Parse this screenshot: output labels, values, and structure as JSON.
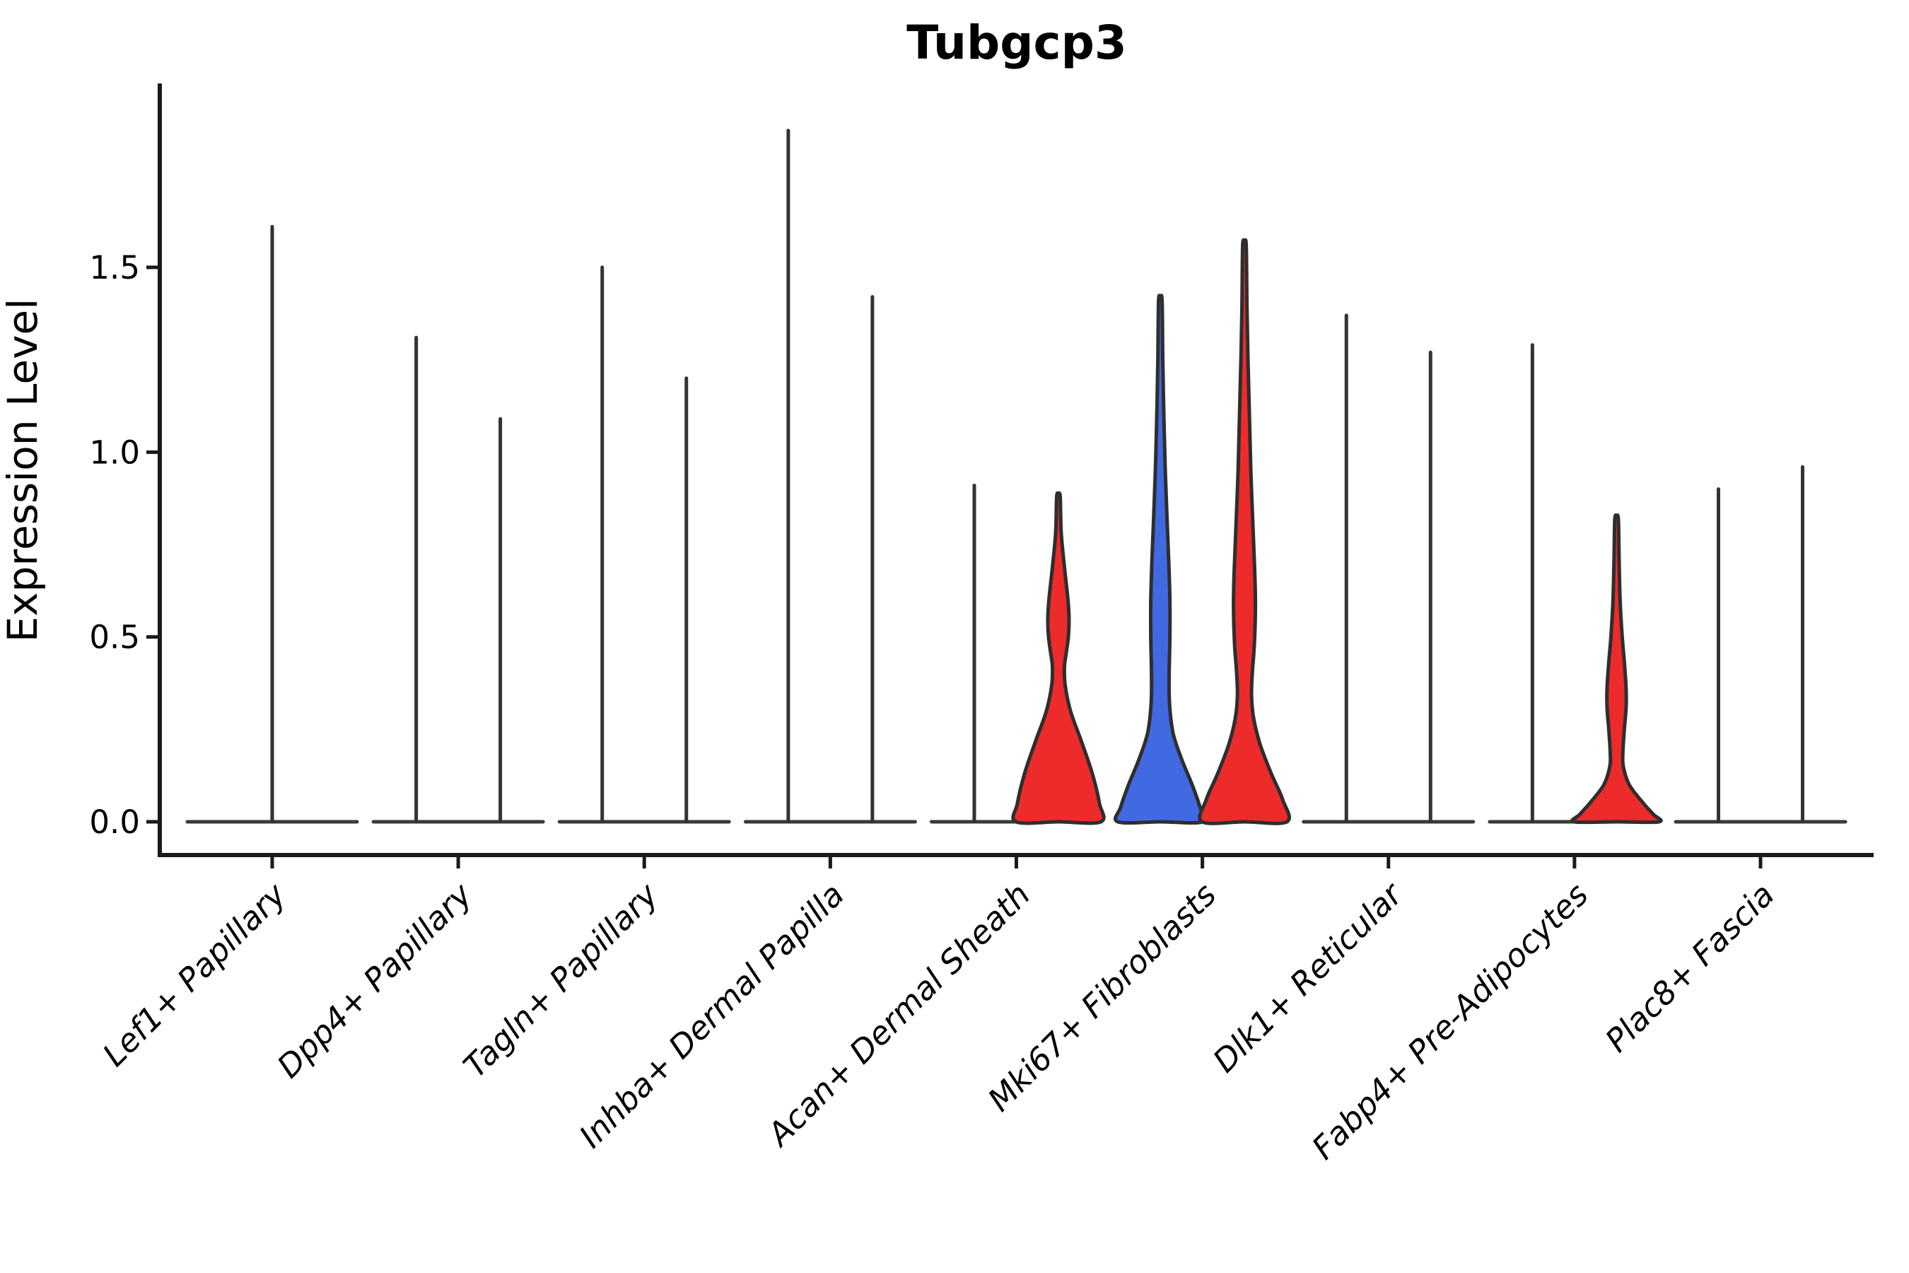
{
  "chart_data": {
    "type": "violin",
    "title": "Tubgcp3",
    "xlabel": "",
    "ylabel": "Expression Level",
    "yticks": [
      "0.0",
      "0.5",
      "1.0",
      "1.5"
    ],
    "ytick_values": [
      0.0,
      0.5,
      1.0,
      1.5
    ],
    "ylim": [
      -0.09,
      2.0
    ],
    "grid": false,
    "legend": "none",
    "colors": {
      "red_fill": "#ED2B2B",
      "blue_fill": "#4169E1",
      "outline": "#2E2E2E",
      "spike": "#333333",
      "baseline": "#3A3A3A",
      "spine": "#1A1A1A"
    },
    "categories": [
      {
        "label": "Lef1+ Papillary",
        "violins": [
          {
            "pos": "center",
            "style": "spike",
            "max": 1.61
          }
        ]
      },
      {
        "label": "Dpp4+ Papillary",
        "violins": [
          {
            "pos": "left",
            "style": "spike",
            "max": 1.31
          },
          {
            "pos": "right",
            "style": "spike",
            "max": 1.09
          }
        ]
      },
      {
        "label": "Tagln+ Papillary",
        "violins": [
          {
            "pos": "left",
            "style": "spike",
            "max": 1.5
          },
          {
            "pos": "right",
            "style": "spike",
            "max": 1.2
          }
        ]
      },
      {
        "label": "Inhba+ Dermal Papilla",
        "violins": [
          {
            "pos": "left",
            "style": "spike",
            "max": 1.87
          },
          {
            "pos": "right",
            "style": "spike",
            "max": 1.42
          }
        ]
      },
      {
        "label": "Acan+ Dermal Sheath",
        "violins": [
          {
            "pos": "left",
            "style": "spike",
            "max": 0.91
          },
          {
            "pos": "right",
            "style": "violin",
            "max": 0.88,
            "fill": "#ED2B2B",
            "profile": [
              [
                0.88,
                2.5
              ],
              [
                0.78,
                4
              ],
              [
                0.68,
                9
              ],
              [
                0.6,
                13.5
              ],
              [
                0.55,
                15
              ],
              [
                0.5,
                14
              ],
              [
                0.45,
                10.5
              ],
              [
                0.42,
                8.5
              ],
              [
                0.37,
                9.5
              ],
              [
                0.3,
                17
              ],
              [
                0.22,
                32
              ],
              [
                0.13,
                48
              ],
              [
                0.05,
                58
              ],
              [
                0.0,
                60
              ]
            ]
          }
        ]
      },
      {
        "label": "Mki67+ Fibroblasts",
        "violins": [
          {
            "pos": "left",
            "style": "violin",
            "max": 1.41,
            "fill": "#4169E1",
            "profile": [
              [
                1.41,
                2.5
              ],
              [
                1.25,
                3.5
              ],
              [
                1.1,
                5
              ],
              [
                0.95,
                7
              ],
              [
                0.82,
                9.5
              ],
              [
                0.7,
                12
              ],
              [
                0.6,
                13.5
              ],
              [
                0.5,
                13.5
              ],
              [
                0.4,
                12.5
              ],
              [
                0.32,
                13
              ],
              [
                0.24,
                18
              ],
              [
                0.17,
                30
              ],
              [
                0.1,
                45
              ],
              [
                0.04,
                56
              ],
              [
                0.0,
                60
              ]
            ]
          },
          {
            "pos": "right",
            "style": "violin",
            "max": 1.56,
            "fill": "#ED2B2B",
            "profile": [
              [
                1.56,
                2.5
              ],
              [
                1.4,
                3.5
              ],
              [
                1.25,
                5
              ],
              [
                1.1,
                7
              ],
              [
                0.95,
                9
              ],
              [
                0.8,
                12
              ],
              [
                0.68,
                14.5
              ],
              [
                0.58,
                15.5
              ],
              [
                0.48,
                14
              ],
              [
                0.4,
                11
              ],
              [
                0.34,
                10
              ],
              [
                0.28,
                13
              ],
              [
                0.21,
                22
              ],
              [
                0.13,
                38
              ],
              [
                0.06,
                54
              ],
              [
                0.0,
                60
              ]
            ]
          }
        ]
      },
      {
        "label": "Dlk1+ Reticular",
        "violins": [
          {
            "pos": "left",
            "style": "spike",
            "max": 1.37
          },
          {
            "pos": "right",
            "style": "spike",
            "max": 1.27
          }
        ]
      },
      {
        "label": "Fabp4+ Pre-Adipocytes",
        "violins": [
          {
            "pos": "left",
            "style": "spike",
            "max": 1.29
          },
          {
            "pos": "right",
            "style": "violin",
            "max": 0.82,
            "fill": "#ED2B2B",
            "profile": [
              [
                0.82,
                2.5
              ],
              [
                0.72,
                3.5
              ],
              [
                0.6,
                5
              ],
              [
                0.5,
                8
              ],
              [
                0.42,
                11.5
              ],
              [
                0.36,
                13.5
              ],
              [
                0.31,
                13.5
              ],
              [
                0.25,
                11
              ],
              [
                0.19,
                9
              ],
              [
                0.15,
                9.5
              ],
              [
                0.1,
                18
              ],
              [
                0.05,
                38
              ],
              [
                0.02,
                52
              ],
              [
                0.0,
                60
              ]
            ]
          }
        ]
      },
      {
        "label": "Plac8+ Fascia",
        "violins": [
          {
            "pos": "left",
            "style": "spike",
            "max": 0.9
          },
          {
            "pos": "right",
            "style": "spike",
            "max": 0.96
          }
        ]
      }
    ]
  }
}
